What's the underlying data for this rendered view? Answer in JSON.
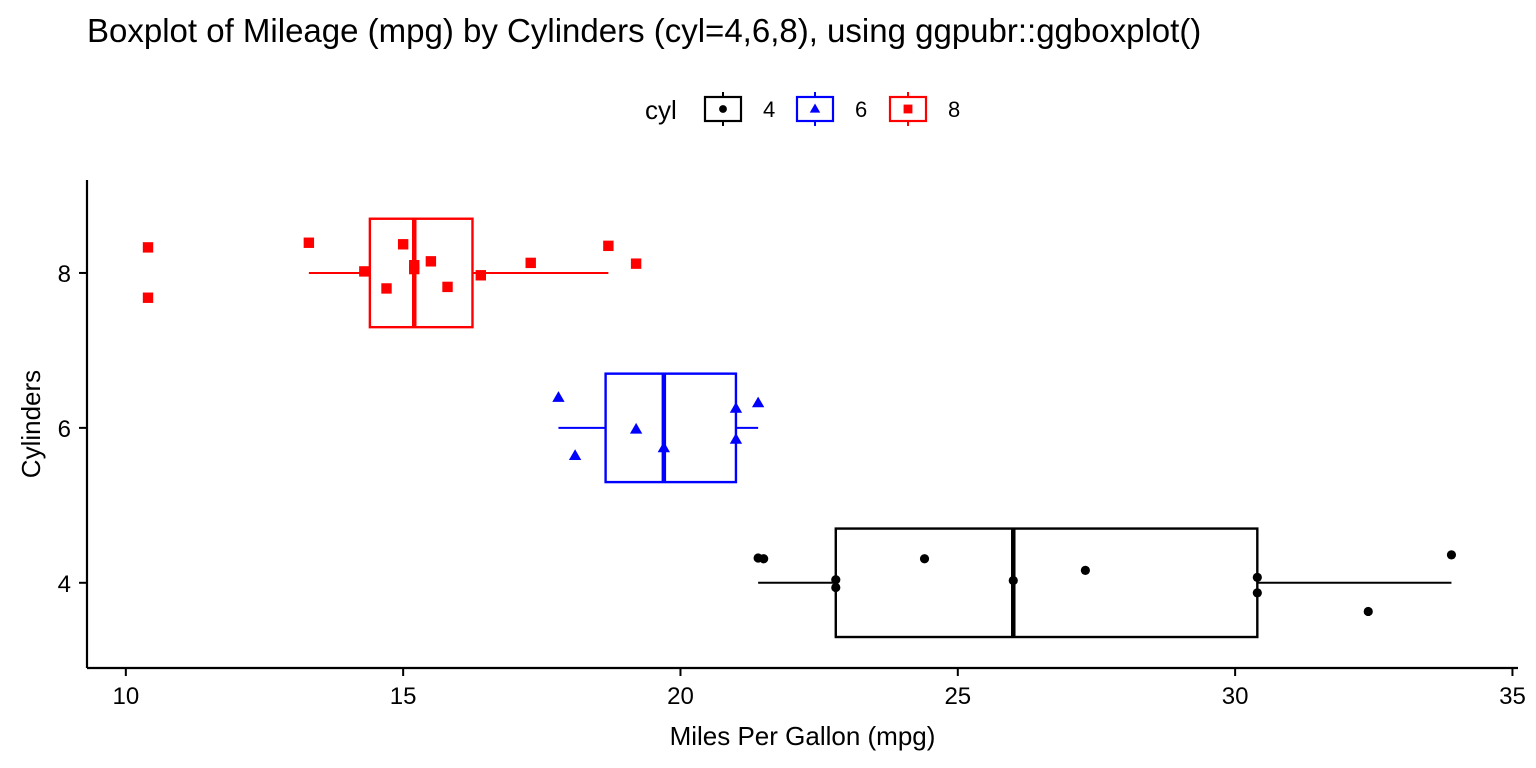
{
  "chart_data": {
    "type": "boxplot",
    "orientation": "horizontal",
    "title": "Boxplot of Mileage (mpg) by Cylinders (cyl=4,6,8), using ggpubr::ggboxplot()",
    "xlabel": "Miles Per Gallon (mpg)",
    "ylabel": "Cylinders",
    "xlim": [
      9.3,
      35.1
    ],
    "ylim": [
      2.9,
      9.2
    ],
    "x_ticks": [
      10,
      15,
      20,
      25,
      30,
      35
    ],
    "y_ticks": [
      4,
      6,
      8
    ],
    "grid": false,
    "legend": {
      "title": "cyl",
      "placement": "top",
      "entries": [
        {
          "label": "4",
          "color": "#000000",
          "shape": "circle"
        },
        {
          "label": "6",
          "color": "#0000ff",
          "shape": "triangle"
        },
        {
          "label": "8",
          "color": "#ff0000",
          "shape": "square"
        }
      ]
    },
    "series": [
      {
        "group": "4",
        "y": 4,
        "color": "#000000",
        "shape": "circle",
        "box": {
          "whisker_low": 21.4,
          "q1": 22.8,
          "median": 26.0,
          "q3": 30.4,
          "whisker_high": 33.9
        },
        "points": [
          [
            21.4,
            4.32
          ],
          [
            21.5,
            4.31
          ],
          [
            22.8,
            4.04
          ],
          [
            22.8,
            3.94
          ],
          [
            24.4,
            4.31
          ],
          [
            26.0,
            4.03
          ],
          [
            27.3,
            4.16
          ],
          [
            30.4,
            4.07
          ],
          [
            30.4,
            3.87
          ],
          [
            32.4,
            3.63
          ],
          [
            33.9,
            4.36
          ]
        ]
      },
      {
        "group": "6",
        "y": 6,
        "color": "#0000ff",
        "shape": "triangle",
        "box": {
          "whisker_low": 17.8,
          "q1": 18.65,
          "median": 19.7,
          "q3": 21.0,
          "whisker_high": 21.4
        },
        "points": [
          [
            17.8,
            6.39
          ],
          [
            18.1,
            5.64
          ],
          [
            19.2,
            5.98
          ],
          [
            19.7,
            5.74
          ],
          [
            21.0,
            6.25
          ],
          [
            21.0,
            5.85
          ],
          [
            21.4,
            6.32
          ]
        ]
      },
      {
        "group": "8",
        "y": 8,
        "color": "#ff0000",
        "shape": "square",
        "box": {
          "whisker_low": 13.3,
          "q1": 14.4,
          "median": 15.2,
          "q3": 16.25,
          "whisker_high": 18.7
        },
        "points": [
          [
            10.4,
            8.33
          ],
          [
            10.4,
            7.68
          ],
          [
            13.3,
            8.39
          ],
          [
            14.3,
            8.02
          ],
          [
            14.7,
            7.8
          ],
          [
            15.0,
            8.37
          ],
          [
            15.2,
            8.1
          ],
          [
            15.2,
            8.05
          ],
          [
            15.5,
            8.15
          ],
          [
            15.8,
            7.82
          ],
          [
            16.4,
            7.97
          ],
          [
            17.3,
            8.13
          ],
          [
            18.7,
            8.35
          ],
          [
            19.2,
            8.12
          ]
        ]
      }
    ]
  }
}
